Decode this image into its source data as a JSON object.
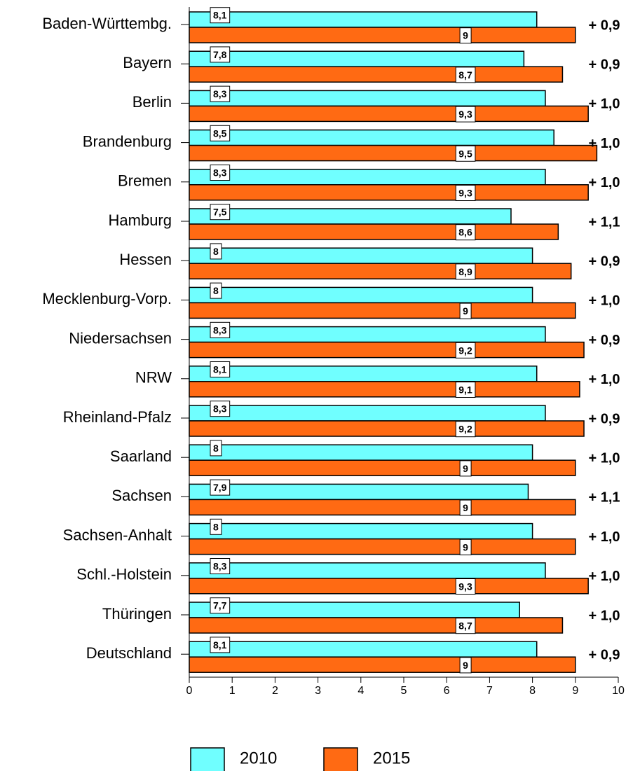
{
  "chart_data": {
    "type": "bar",
    "orientation": "horizontal",
    "categories": [
      "Baden-Württembg.",
      "Bayern",
      "Berlin",
      "Brandenburg",
      "Bremen",
      "Hamburg",
      "Hessen",
      "Mecklenburg-Vorp.",
      "Niedersachsen",
      "NRW",
      "Rheinland-Pfalz",
      "Saarland",
      "Sachsen",
      "Sachsen-Anhalt",
      "Schl.-Holstein",
      "Thüringen",
      "Deutschland"
    ],
    "series": [
      {
        "name": "2010",
        "color": "#70ffff",
        "values": [
          8.1,
          7.8,
          8.3,
          8.5,
          8.3,
          7.5,
          8,
          8,
          8.3,
          8.1,
          8.3,
          8,
          7.9,
          8,
          8.3,
          7.7,
          8.1
        ],
        "value_labels": [
          "8,1",
          "7,8",
          "8,3",
          "8,5",
          "8,3",
          "7,5",
          "8",
          "8",
          "8,3",
          "8,1",
          "8,3",
          "8",
          "7,9",
          "8",
          "8,3",
          "7,7",
          "8,1"
        ]
      },
      {
        "name": "2015",
        "color": "#ff6a13",
        "values": [
          9,
          8.7,
          9.3,
          9.5,
          9.3,
          8.6,
          8.9,
          9,
          9.2,
          9.1,
          9.2,
          9,
          9,
          9,
          9.3,
          8.7,
          9
        ],
        "value_labels": [
          "9",
          "8,7",
          "9,3",
          "9,5",
          "9,3",
          "8,6",
          "8,9",
          "9",
          "9,2",
          "9,1",
          "9,2",
          "9",
          "9",
          "9",
          "9,3",
          "8,7",
          "9"
        ]
      }
    ],
    "annotations": [
      "+ 0,9",
      "+ 0,9",
      "+ 1,0",
      "+ 1,0",
      "+ 1,0",
      "+ 1,1",
      "+ 0,9",
      "+ 1,0",
      "+ 0,9",
      "+ 1,0",
      "+ 0,9",
      "+ 1,0",
      "+ 1,1",
      "+ 1,0",
      "+ 1,0",
      "+ 1,0",
      "+ 0,9"
    ],
    "xlim": [
      0,
      10
    ],
    "xticks": [
      0,
      1,
      2,
      3,
      4,
      5,
      6,
      7,
      8,
      9,
      10
    ],
    "grid": false
  }
}
